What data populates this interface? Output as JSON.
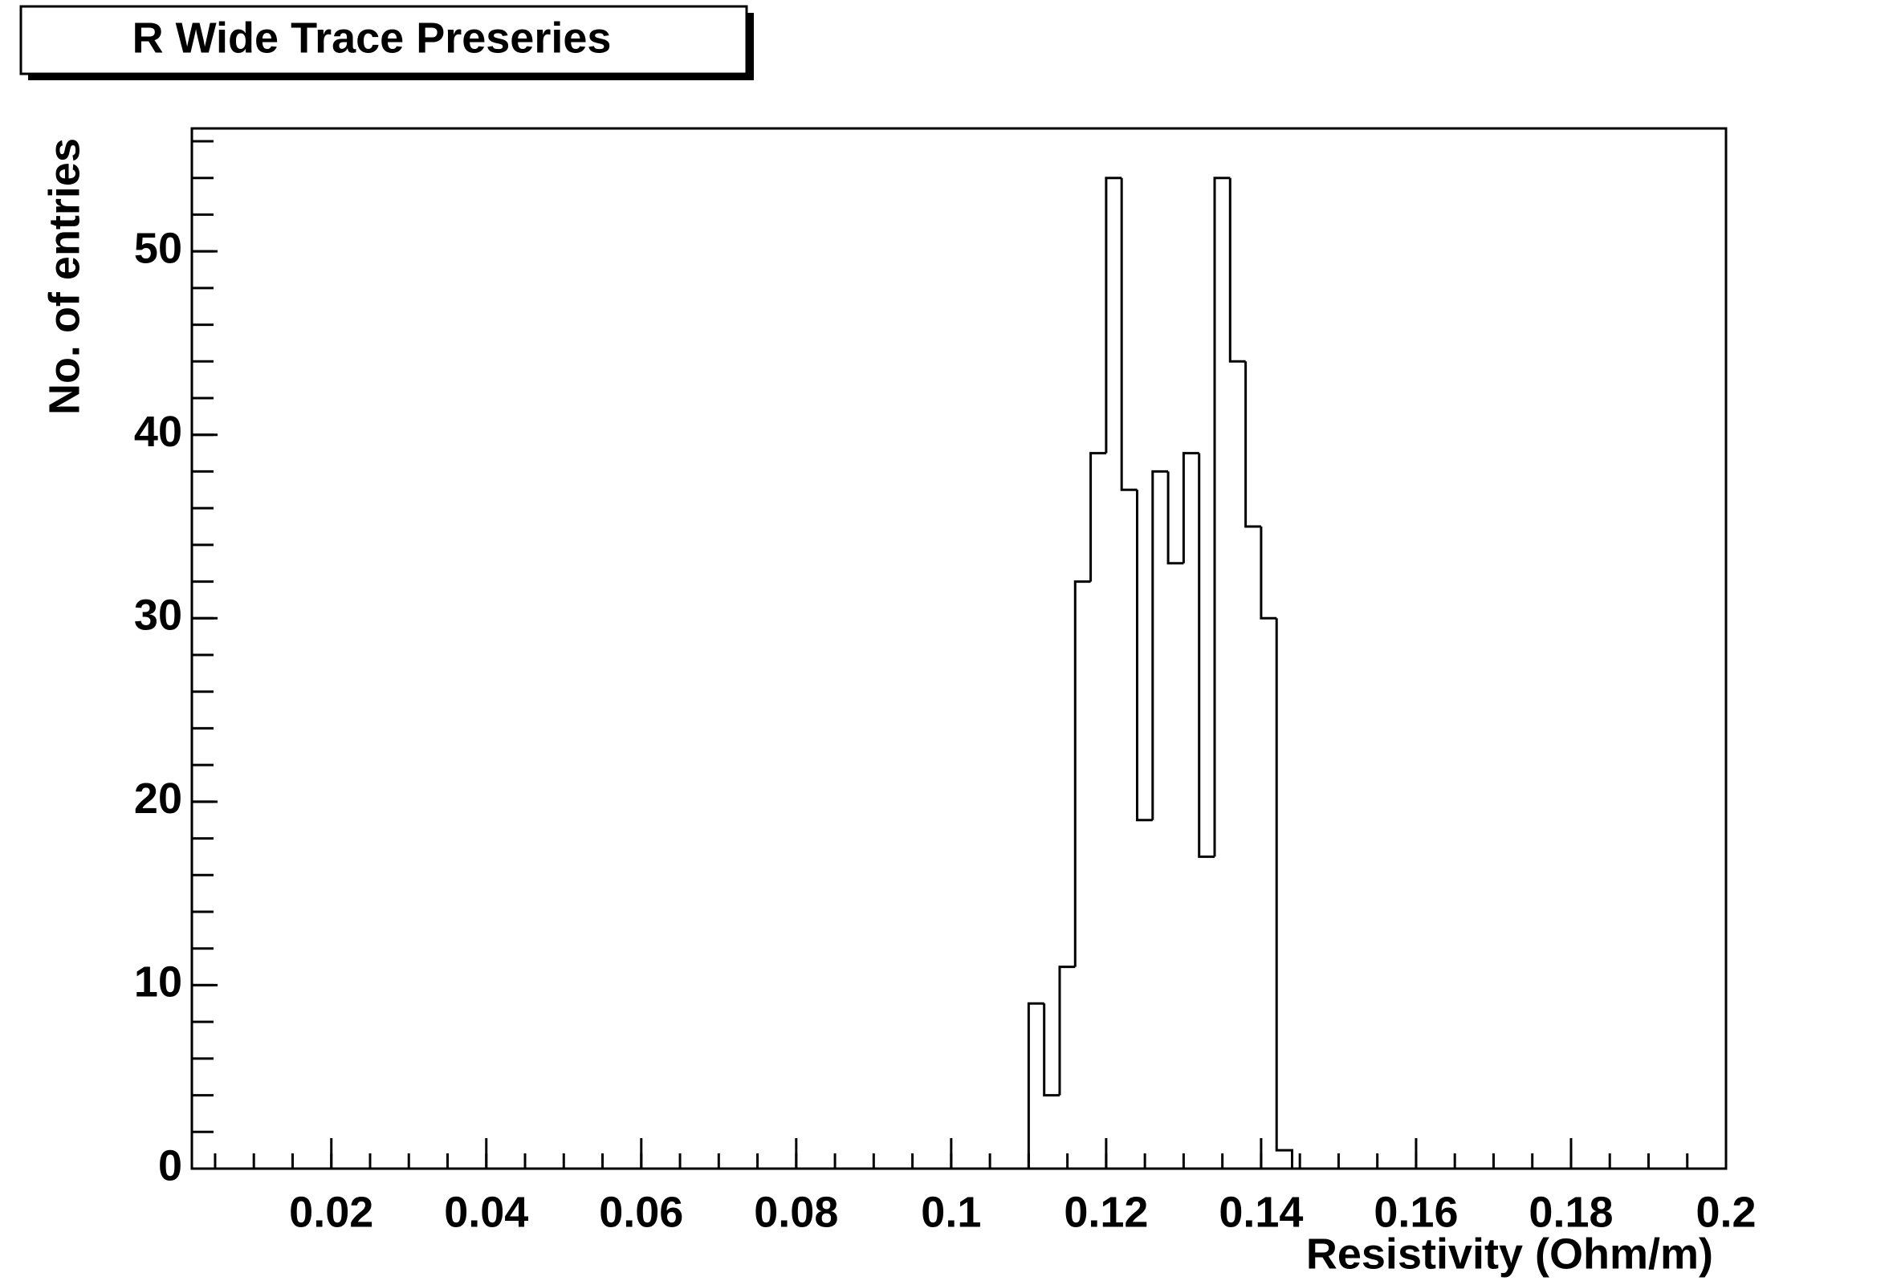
{
  "chart_data": {
    "type": "histogram",
    "title": "R Wide Trace Preseries",
    "x_label": "Resistivity (Ohm/m)",
    "y_label": "No. of entries",
    "bins": [
      0.11,
      0.112,
      0.114,
      0.116,
      0.118,
      0.12,
      0.122,
      0.124,
      0.126,
      0.128,
      0.13,
      0.132,
      0.134,
      0.136,
      0.138,
      0.14,
      0.142,
      0.144
    ],
    "values": [
      9,
      4,
      11,
      32,
      39,
      54,
      37,
      19,
      38,
      33,
      39,
      17,
      54,
      44,
      35,
      30,
      1
    ],
    "color": "#000000",
    "xlim": [
      0.002,
      0.2
    ],
    "xticks": [
      0.02,
      0.04,
      0.06,
      0.08,
      0.1,
      0.12,
      0.14,
      0.16,
      0.18,
      0.2
    ],
    "ylim": [
      0,
      56.7
    ],
    "yticks": [
      0,
      10,
      20,
      30,
      40,
      50
    ]
  }
}
